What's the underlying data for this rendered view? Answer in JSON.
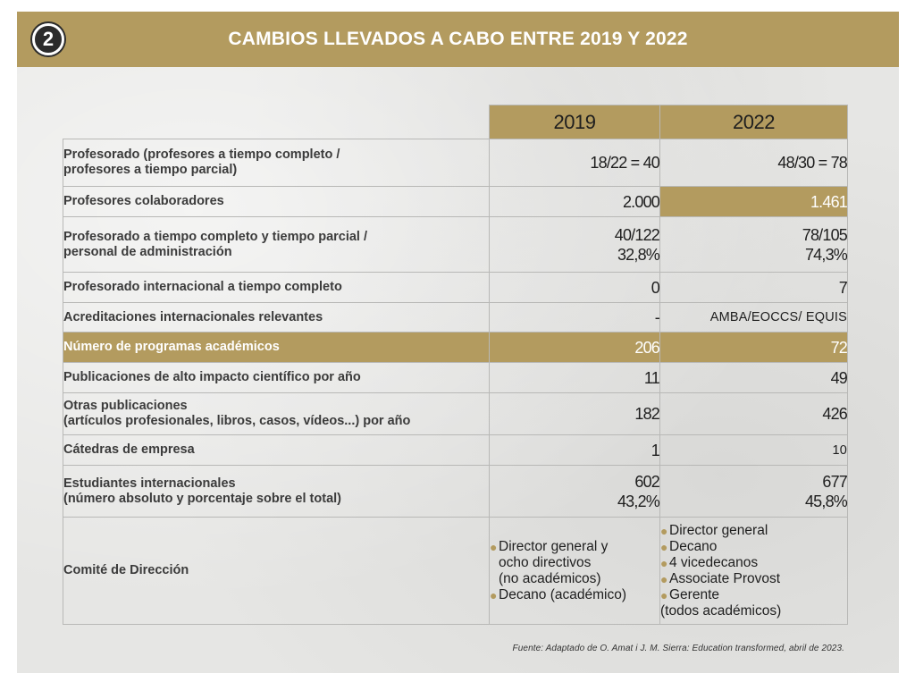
{
  "header": {
    "badge": "2",
    "title": "CAMBIOS LLEVADOS A CABO ENTRE 2019 Y 2022"
  },
  "columns": [
    "2019",
    "2022"
  ],
  "rows": [
    {
      "label": [
        "Profesorado (profesores a tiempo completo /",
        "profesores a tiempo parcial)"
      ],
      "v2019": [
        "18/22 = 40"
      ],
      "v2022": [
        "48/30 = 78"
      ]
    },
    {
      "label": [
        "Profesores colaboradores"
      ],
      "v2019": [
        "2.000"
      ],
      "v2022": [
        "1.461"
      ]
    },
    {
      "label": [
        "Profesorado a tiempo completo y tiempo parcial /",
        "personal de administración"
      ],
      "v2019": [
        "40/122",
        "32,8%"
      ],
      "v2022": [
        "78/105",
        "74,3%"
      ]
    },
    {
      "label": [
        "Profesorado internacional a tiempo completo"
      ],
      "v2019": [
        "0"
      ],
      "v2022": [
        "7"
      ]
    },
    {
      "label": [
        "Acreditaciones internacionales relevantes"
      ],
      "v2019": [
        "-"
      ],
      "v2022": [
        "AMBA/EOCCS/ EQUIS"
      ]
    },
    {
      "label": [
        "Número de programas académicos"
      ],
      "v2019": [
        "206"
      ],
      "v2022": [
        "72"
      ]
    },
    {
      "label": [
        "Publicaciones de alto impacto científico por año"
      ],
      "v2019": [
        "11"
      ],
      "v2022": [
        "49"
      ]
    },
    {
      "label": [
        "Otras publicaciones",
        "(artículos profesionales, libros, casos, vídeos...) por año"
      ],
      "v2019": [
        "182"
      ],
      "v2022": [
        "426"
      ]
    },
    {
      "label": [
        "Cátedras de empresa"
      ],
      "v2019": [
        "1"
      ],
      "v2022": [
        "10"
      ]
    },
    {
      "label": [
        "Estudiantes internacionales",
        "(número absoluto y porcentaje sobre el total)"
      ],
      "v2019": [
        "602",
        "43,2%"
      ],
      "v2022": [
        "677",
        "45,8%"
      ]
    }
  ],
  "committee": {
    "label": "Comité de Dirección",
    "v2019": [
      "Director general y",
      "ocho directivos",
      "(no académicos)",
      "Decano (académico)"
    ],
    "v2022": [
      "Director general",
      "Decano",
      "4 vicedecanos",
      "Associate Provost",
      "Gerente",
      "(todos académicos)"
    ]
  },
  "source": "Fuente: Adaptado de O. Amat i J. M. Sierra: Education transformed, abril de 2023.",
  "colors": {
    "gold": "#b39b5f",
    "text": "#3b3b3b"
  }
}
